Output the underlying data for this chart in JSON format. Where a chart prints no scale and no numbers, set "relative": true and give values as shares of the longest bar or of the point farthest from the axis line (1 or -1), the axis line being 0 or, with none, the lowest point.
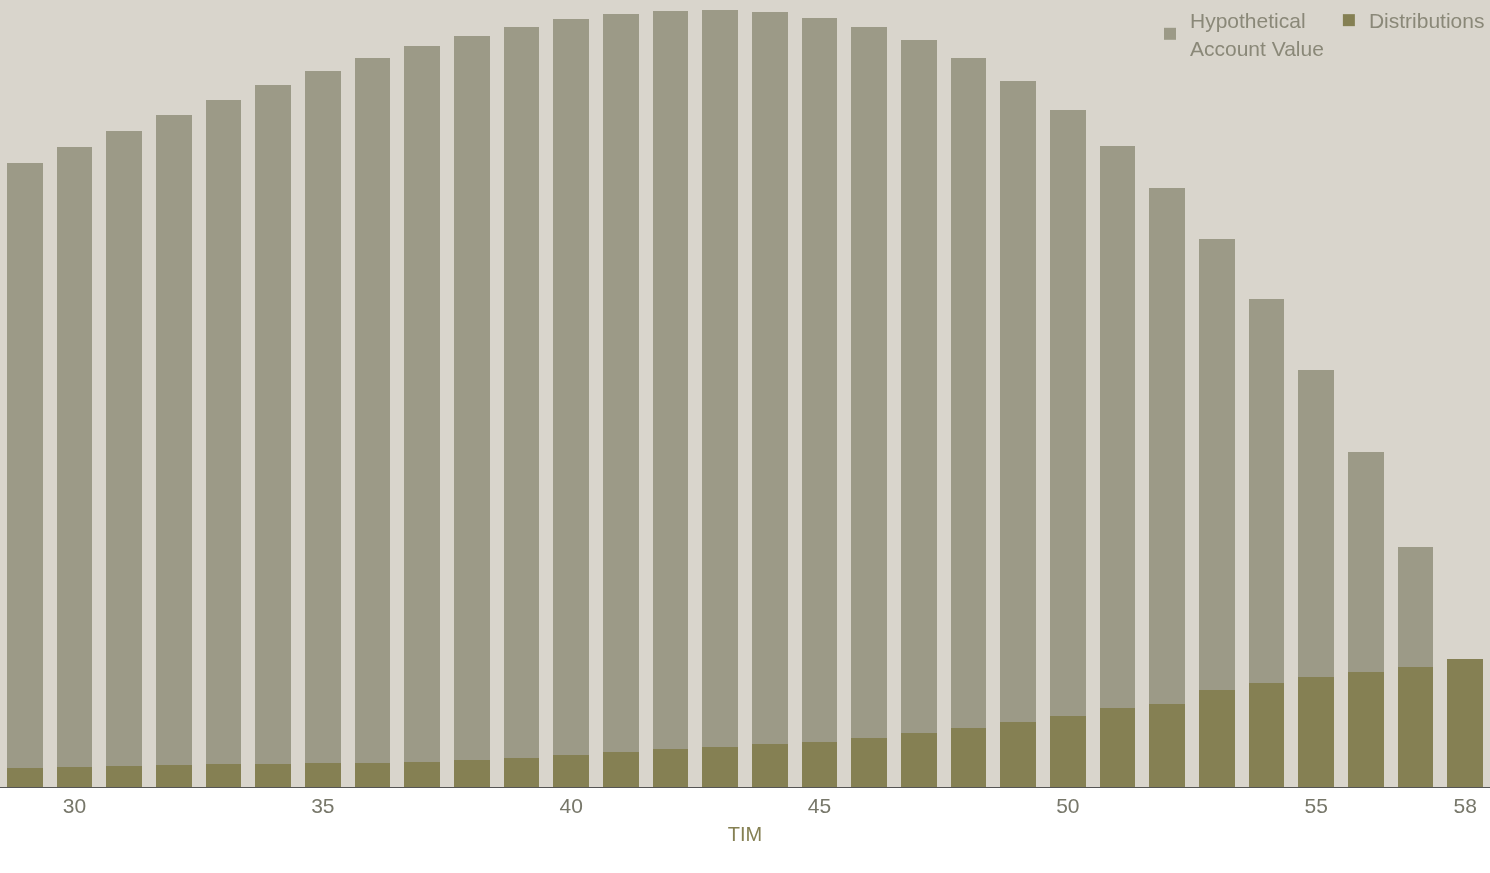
{
  "chart_data": {
    "type": "bar",
    "relative": true,
    "stacked": true,
    "xlabel": "TIM",
    "x": [
      29,
      30,
      31,
      32,
      33,
      34,
      35,
      36,
      37,
      38,
      39,
      40,
      41,
      42,
      43,
      44,
      45,
      46,
      47,
      48,
      49,
      50,
      51,
      52,
      53,
      54,
      55,
      56,
      57,
      58
    ],
    "xticks": [
      30,
      35,
      40,
      45,
      50,
      55,
      58
    ],
    "xlim": [
      28.5,
      58.5
    ],
    "legend": "top right",
    "grid": false,
    "series": [
      {
        "name": "Distributions",
        "color": "#858053",
        "values": [
          0.024,
          0.026,
          0.027,
          0.028,
          0.03,
          0.03,
          0.031,
          0.031,
          0.032,
          0.035,
          0.037,
          0.041,
          0.045,
          0.049,
          0.051,
          0.055,
          0.058,
          0.063,
          0.069,
          0.076,
          0.084,
          0.091,
          0.102,
          0.107,
          0.125,
          0.134,
          0.142,
          0.148,
          0.154,
          0.165
        ]
      },
      {
        "name": "Hypothetical\nAccount Value",
        "color": "#9c9a87",
        "values": [
          0.779,
          0.798,
          0.817,
          0.837,
          0.854,
          0.873,
          0.89,
          0.907,
          0.922,
          0.932,
          0.941,
          0.947,
          0.95,
          0.95,
          0.949,
          0.942,
          0.932,
          0.915,
          0.892,
          0.862,
          0.825,
          0.78,
          0.723,
          0.664,
          0.58,
          0.494,
          0.395,
          0.283,
          0.155,
          0
        ]
      }
    ]
  }
}
